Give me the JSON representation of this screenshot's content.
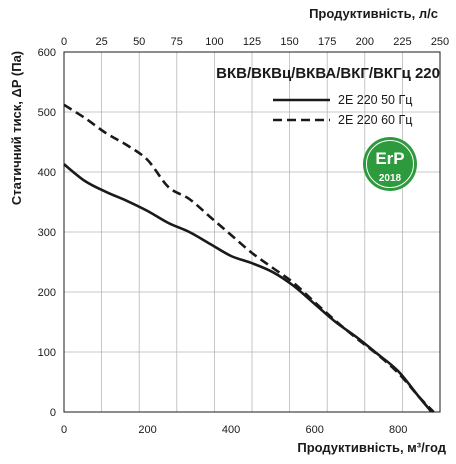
{
  "chart_data": {
    "type": "line",
    "title": "ВКВ/ВКВц/ВКВА/ВКГ/ВКГц 220",
    "xlabel": "Продуктивність, м³/год",
    "x2label": "Продуктивність, л/с",
    "ylabel": "Статичний тиск, ΔP (Па)",
    "xlim": [
      0,
      900
    ],
    "ylim": [
      0,
      600
    ],
    "x2lim": [
      0,
      250
    ],
    "xticks": [
      "0",
      "200",
      "400",
      "600",
      "800"
    ],
    "xtick_values": [
      0,
      200,
      400,
      600,
      800
    ],
    "x2ticks": [
      "0",
      "25",
      "50",
      "75",
      "100",
      "125",
      "150",
      "175",
      "200",
      "225",
      "250"
    ],
    "x2tick_values": [
      0,
      25,
      50,
      75,
      100,
      125,
      150,
      175,
      200,
      225,
      250
    ],
    "yticks": [
      "0",
      "100",
      "200",
      "300",
      "400",
      "500",
      "600"
    ],
    "ytick_values": [
      0,
      100,
      200,
      300,
      400,
      500,
      600
    ],
    "grid": true,
    "legend_position": "top-right",
    "series": [
      {
        "name": "2E 220 50 Гц",
        "style": "solid",
        "color": "#1a1a1a",
        "x": [
          0,
          50,
          100,
          150,
          200,
          250,
          300,
          350,
          400,
          450,
          500,
          550,
          600,
          650,
          700,
          750,
          800,
          850,
          880
        ],
        "y": [
          413,
          385,
          367,
          352,
          335,
          315,
          300,
          280,
          260,
          248,
          233,
          210,
          180,
          150,
          125,
          97,
          68,
          25,
          0
        ]
      },
      {
        "name": "2E 220 60 Гц",
        "style": "dashed",
        "color": "#1a1a1a",
        "x": [
          0,
          50,
          100,
          150,
          200,
          250,
          300,
          350,
          400,
          450,
          500,
          550,
          600,
          650,
          700,
          750,
          800,
          850,
          885
        ],
        "y": [
          512,
          490,
          465,
          445,
          420,
          375,
          355,
          325,
          295,
          265,
          240,
          215,
          183,
          152,
          123,
          96,
          65,
          25,
          0
        ]
      }
    ]
  },
  "badge": {
    "label": "ErP",
    "year": "2018",
    "color": "#2e9a3e"
  }
}
